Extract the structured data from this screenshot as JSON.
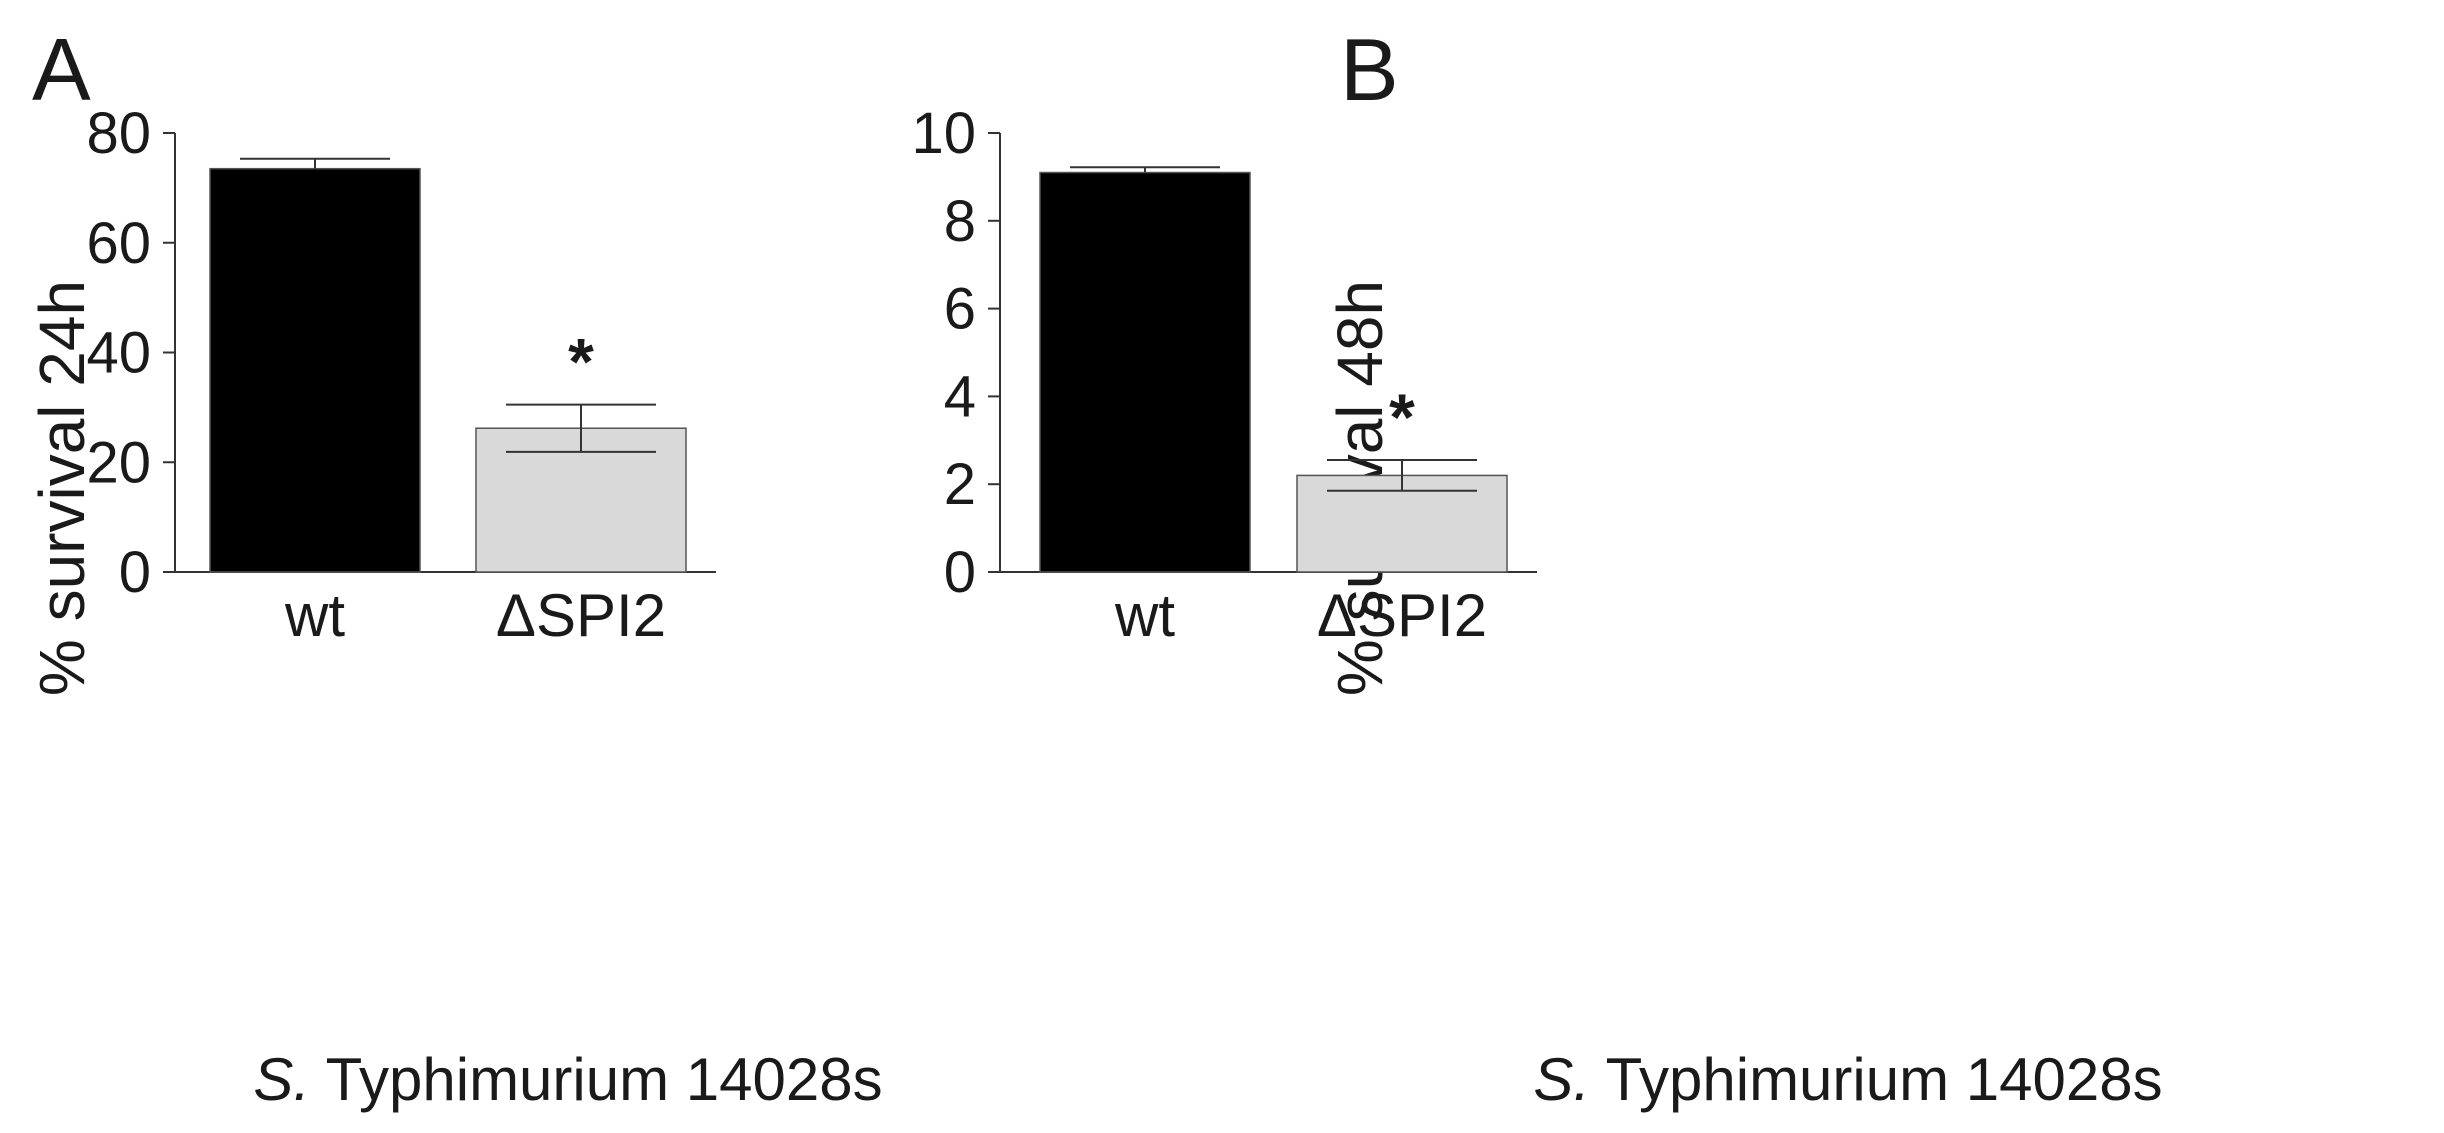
{
  "chart_data": [
    {
      "panel_label": "A",
      "type": "bar",
      "categories": [
        "wt",
        "ΔSPI2"
      ],
      "values": [
        73.5,
        26.2
      ],
      "errors": [
        1.8,
        4.3
      ],
      "bar_colors": [
        "#000000",
        "#d9d9d9"
      ],
      "annotations": [
        "",
        "*"
      ],
      "ylabel": "% survival 24h",
      "xlabel_italic": "S.",
      "xlabel_rest": " Typhimurium 14028s",
      "ylim": [
        0,
        80
      ],
      "yticks": [
        "0",
        "20",
        "40",
        "60",
        "80"
      ]
    },
    {
      "panel_label": "B",
      "type": "bar",
      "categories": [
        "wt",
        "ΔSPI2"
      ],
      "values": [
        9.1,
        2.2
      ],
      "errors": [
        0.12,
        0.35
      ],
      "bar_colors": [
        "#000000",
        "#d9d9d9"
      ],
      "annotations": [
        "",
        "*"
      ],
      "ylabel": "% survival 48h",
      "xlabel_italic": "S.",
      "xlabel_rest": " Typhimurium 14028s",
      "ylim": [
        0,
        10
      ],
      "yticks": [
        "0",
        "2",
        "4",
        "6",
        "8",
        "10"
      ]
    }
  ]
}
